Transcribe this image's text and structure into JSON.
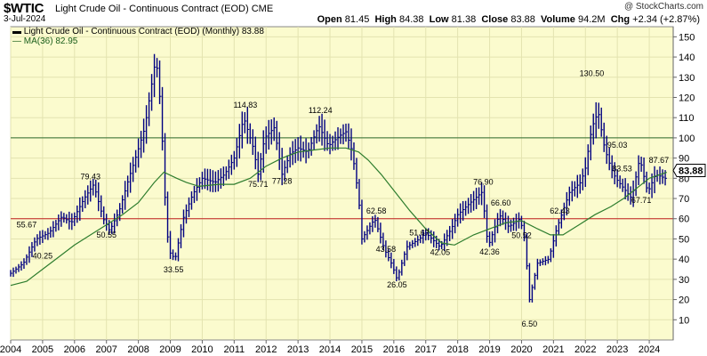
{
  "header": {
    "symbol": "$WTIC",
    "name": "Light Crude Oil - Continuous Contract (EOD)",
    "exchange": "CME",
    "copyright": "@ StockCharts.com",
    "date": "3-Jul-2024",
    "open_label": "Open",
    "open": "81.45",
    "high_label": "High",
    "high": "84.38",
    "low_label": "Low",
    "low": "81.38",
    "close_label": "Close",
    "close": "83.88",
    "volume_label": "Volume",
    "volume": "94.2M",
    "chg_label": "Chg",
    "chg": "+2.34 (+2.87%)"
  },
  "legend": {
    "price_label": "Light Crude Oil - Continuous Contract (EOD) (Monthly) 83.88",
    "ma_label": "MA(36) 82.95"
  },
  "colors": {
    "plot_bg": "#fbfbce",
    "price": "#000080",
    "ma": "#2e7d2e",
    "line_100": "#2e6b2e",
    "line_60": "#c02020",
    "grid": "#e3e3b0"
  },
  "chart_data": {
    "type": "ohlc",
    "interval": "monthly",
    "xlim": [
      2004.0,
      2024.75
    ],
    "ylim": [
      0,
      155
    ],
    "y_ticks": [
      10,
      20,
      30,
      40,
      50,
      60,
      70,
      80,
      90,
      100,
      110,
      120,
      130,
      140,
      150
    ],
    "x_ticks": [
      2004,
      2005,
      2006,
      2007,
      2008,
      2009,
      2010,
      2011,
      2012,
      2013,
      2014,
      2015,
      2016,
      2017,
      2018,
      2019,
      2020,
      2021,
      2022,
      2023,
      2024
    ],
    "horizontal_lines": [
      100,
      60
    ],
    "last_value": "83.88",
    "price_path": [
      [
        2004.0,
        33.0
      ],
      [
        2004.4,
        38.0
      ],
      [
        2004.8,
        50.0
      ],
      [
        2005.2,
        53.0
      ],
      [
        2005.6,
        61.0
      ],
      [
        2005.9,
        58.0
      ],
      [
        2006.3,
        70.0
      ],
      [
        2006.6,
        77.0
      ],
      [
        2006.9,
        60.0
      ],
      [
        2007.1,
        54.0
      ],
      [
        2007.4,
        64.0
      ],
      [
        2007.7,
        80.0
      ],
      [
        2007.95,
        92.0
      ],
      [
        2008.2,
        105.0
      ],
      [
        2008.45,
        130.0
      ],
      [
        2008.55,
        140.0
      ],
      [
        2008.7,
        115.0
      ],
      [
        2008.85,
        65.0
      ],
      [
        2008.95,
        44.0
      ],
      [
        2009.15,
        40.0
      ],
      [
        2009.4,
        60.0
      ],
      [
        2009.7,
        72.0
      ],
      [
        2010.0,
        80.0
      ],
      [
        2010.4,
        78.0
      ],
      [
        2010.7,
        82.0
      ],
      [
        2011.0,
        90.0
      ],
      [
        2011.3,
        110.0
      ],
      [
        2011.6,
        95.0
      ],
      [
        2011.75,
        82.0
      ],
      [
        2011.95,
        100.0
      ],
      [
        2012.25,
        105.0
      ],
      [
        2012.5,
        82.0
      ],
      [
        2012.75,
        92.0
      ],
      [
        2013.0,
        95.0
      ],
      [
        2013.3,
        93.0
      ],
      [
        2013.65,
        106.0
      ],
      [
        2013.95,
        96.0
      ],
      [
        2014.3,
        101.0
      ],
      [
        2014.5,
        103.0
      ],
      [
        2014.7,
        93.0
      ],
      [
        2014.9,
        70.0
      ],
      [
        2015.0,
        50.0
      ],
      [
        2015.4,
        60.0
      ],
      [
        2015.7,
        45.0
      ],
      [
        2015.95,
        37.0
      ],
      [
        2016.1,
        30.0
      ],
      [
        2016.4,
        46.0
      ],
      [
        2016.8,
        50.0
      ],
      [
        2017.0,
        53.0
      ],
      [
        2017.45,
        46.0
      ],
      [
        2017.8,
        55.0
      ],
      [
        2018.0,
        62.0
      ],
      [
        2018.4,
        68.0
      ],
      [
        2018.75,
        73.0
      ],
      [
        2018.85,
        62.0
      ],
      [
        2018.95,
        46.0
      ],
      [
        2019.3,
        62.0
      ],
      [
        2019.6,
        56.0
      ],
      [
        2019.95,
        60.0
      ],
      [
        2020.1,
        50.0
      ],
      [
        2020.25,
        20.0
      ],
      [
        2020.5,
        38.0
      ],
      [
        2020.85,
        40.0
      ],
      [
        2021.1,
        55.0
      ],
      [
        2021.5,
        73.0
      ],
      [
        2021.85,
        78.0
      ],
      [
        2022.0,
        85.0
      ],
      [
        2022.2,
        105.0
      ],
      [
        2022.4,
        113.0
      ],
      [
        2022.6,
        95.0
      ],
      [
        2022.8,
        85.0
      ],
      [
        2022.95,
        80.0
      ],
      [
        2023.2,
        75.0
      ],
      [
        2023.45,
        70.0
      ],
      [
        2023.7,
        90.0
      ],
      [
        2023.95,
        73.0
      ],
      [
        2024.2,
        82.0
      ],
      [
        2024.5,
        80.0
      ],
      [
        2024.55,
        83.88
      ]
    ],
    "ma_path": [
      [
        2004.0,
        27.0
      ],
      [
        2004.5,
        29.0
      ],
      [
        2005.0,
        35.0
      ],
      [
        2005.5,
        41.0
      ],
      [
        2006.0,
        47.0
      ],
      [
        2006.5,
        52.0
      ],
      [
        2007.0,
        57.0
      ],
      [
        2007.5,
        62.0
      ],
      [
        2008.0,
        68.0
      ],
      [
        2008.5,
        78.0
      ],
      [
        2008.8,
        83.0
      ],
      [
        2009.2,
        80.0
      ],
      [
        2009.5,
        78.0
      ],
      [
        2009.9,
        76.0
      ],
      [
        2010.5,
        77.0
      ],
      [
        2011.0,
        77.0
      ],
      [
        2011.5,
        80.0
      ],
      [
        2012.0,
        86.0
      ],
      [
        2012.5,
        90.0
      ],
      [
        2013.0,
        93.0
      ],
      [
        2013.5,
        94.0
      ],
      [
        2014.0,
        95.0
      ],
      [
        2014.5,
        95.0
      ],
      [
        2014.9,
        93.0
      ],
      [
        2015.2,
        89.0
      ],
      [
        2015.6,
        82.0
      ],
      [
        2016.0,
        74.0
      ],
      [
        2016.5,
        64.0
      ],
      [
        2017.0,
        55.0
      ],
      [
        2017.5,
        48.0
      ],
      [
        2017.9,
        47.0
      ],
      [
        2018.5,
        52.0
      ],
      [
        2019.0,
        55.0
      ],
      [
        2019.5,
        58.0
      ],
      [
        2020.0,
        59.0
      ],
      [
        2020.5,
        55.0
      ],
      [
        2020.9,
        52.0
      ],
      [
        2021.3,
        52.0
      ],
      [
        2021.8,
        57.0
      ],
      [
        2022.3,
        62.0
      ],
      [
        2022.8,
        66.0
      ],
      [
        2023.2,
        70.0
      ],
      [
        2023.6,
        75.0
      ],
      [
        2024.0,
        80.0
      ],
      [
        2024.55,
        82.95
      ]
    ],
    "annotations": [
      {
        "label": "55.67",
        "x": 2004.5,
        "y": 55.67
      },
      {
        "label": "40.25",
        "x": 2005.0,
        "y": 40.25
      },
      {
        "label": "79.43",
        "x": 2006.5,
        "y": 79.43
      },
      {
        "label": "50.55",
        "x": 2007.0,
        "y": 50.55
      },
      {
        "label": "33.55",
        "x": 2009.1,
        "y": 33.55
      },
      {
        "label": "114.83",
        "x": 2011.35,
        "y": 114.83
      },
      {
        "label": "75.71",
        "x": 2011.75,
        "y": 75.71
      },
      {
        "label": "77.28",
        "x": 2012.5,
        "y": 77.28
      },
      {
        "label": "112.24",
        "x": 2013.7,
        "y": 112.24
      },
      {
        "label": "62.58",
        "x": 2015.45,
        "y": 62.58
      },
      {
        "label": "43.58",
        "x": 2015.75,
        "y": 43.58
      },
      {
        "label": "51.67",
        "x": 2016.8,
        "y": 51.67
      },
      {
        "label": "26.05",
        "x": 2016.1,
        "y": 26.05
      },
      {
        "label": "42.05",
        "x": 2017.45,
        "y": 42.05
      },
      {
        "label": "76.90",
        "x": 2018.8,
        "y": 76.9
      },
      {
        "label": "66.60",
        "x": 2019.35,
        "y": 66.6
      },
      {
        "label": "42.36",
        "x": 2019.0,
        "y": 42.36
      },
      {
        "label": "50.52",
        "x": 2020.0,
        "y": 50.52
      },
      {
        "label": "6.50",
        "x": 2020.25,
        "y": 6.5
      },
      {
        "label": "62.43",
        "x": 2021.2,
        "y": 62.43
      },
      {
        "label": "130.50",
        "x": 2022.2,
        "y": 130.5
      },
      {
        "label": "95.03",
        "x": 2023.0,
        "y": 95.03
      },
      {
        "label": "83.53",
        "x": 2023.15,
        "y": 83.53
      },
      {
        "label": "87.67",
        "x": 2024.3,
        "y": 87.67
      },
      {
        "label": "67.71",
        "x": 2023.75,
        "y": 67.71
      }
    ]
  }
}
